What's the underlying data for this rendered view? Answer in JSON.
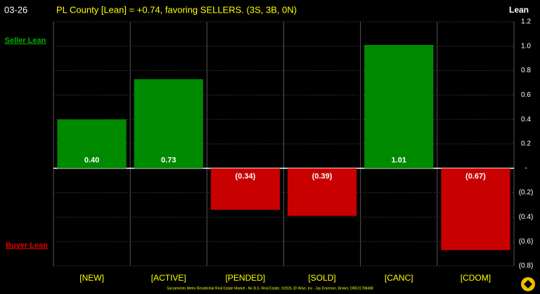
{
  "chart_data": {
    "type": "bar",
    "date_label": "03-26",
    "title": "PL County [Lean] = +0.74, favoring SELLERS. (3S, 3B, 0N)",
    "y_axis_label": "Lean",
    "upper_label": "Seller Lean",
    "lower_label": "Buyer Lean",
    "footer": "Sacramento Metro Residential Real Estate Market - No B.S. Real Estate, ©2026 JD Wise, Inc - Jay Emerson, Broker, DRE#1788488",
    "categories": [
      "[NEW]",
      "[ACTIVE]",
      "[PENDED]",
      "[SOLD]",
      "[CANC]",
      "[CDOM]"
    ],
    "values": [
      0.4,
      0.73,
      -0.34,
      -0.39,
      1.01,
      -0.67
    ],
    "value_labels": [
      "0.40",
      "0.73",
      "(0.34)",
      "(0.39)",
      "1.01",
      "(0.67)"
    ],
    "positive_color": "#008a00",
    "negative_color": "#c80000",
    "ylim": [
      -0.8,
      1.2
    ],
    "yticks": [
      {
        "value": -0.8,
        "label": "(0.8)"
      },
      {
        "value": -0.6,
        "label": "(0.6)"
      },
      {
        "value": -0.4,
        "label": "(0.4)"
      },
      {
        "value": -0.2,
        "label": "(0.2)"
      },
      {
        "value": 0,
        "label": "-"
      },
      0.2,
      0.4,
      0.6,
      0.8,
      {
        "value": 1.0,
        "label": "1.0"
      },
      1.2
    ],
    "grid": true
  }
}
